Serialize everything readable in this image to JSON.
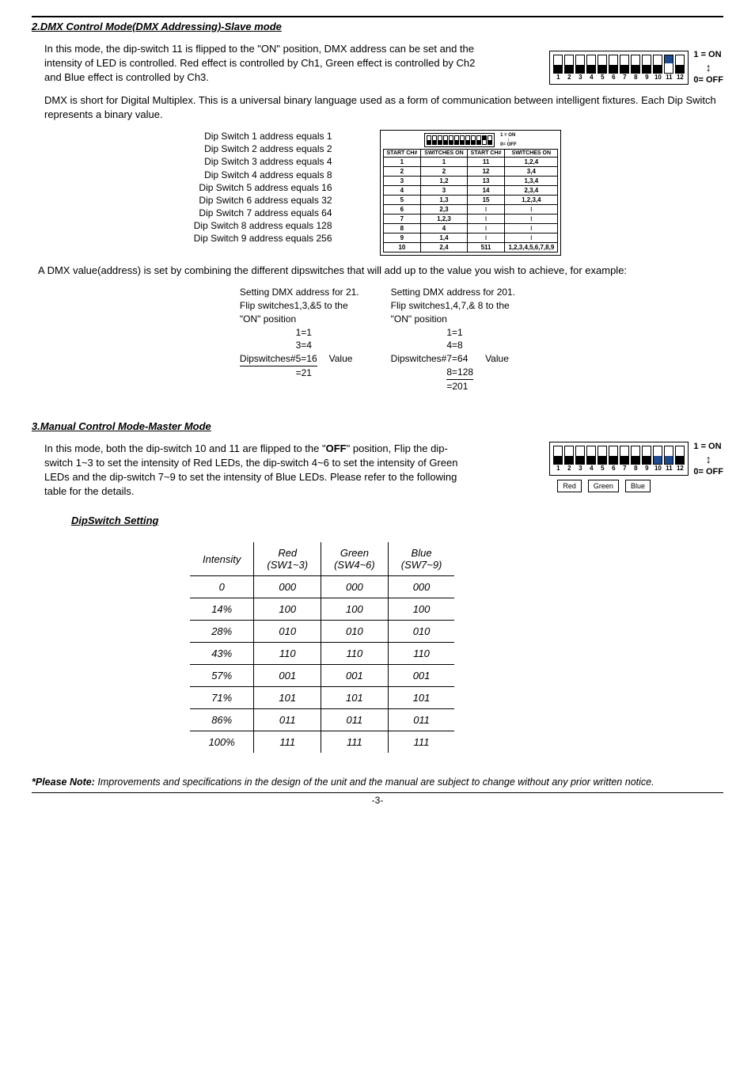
{
  "section2": {
    "title": "2.DMX Control Mode(DMX Addressing)-Slave mode",
    "para1": "In this mode, the dip-switch 11 is flipped to the \"ON\" position, DMX address can be set and the intensity of LED is controlled. Red effect is controlled by Ch1, Green effect is controlled by Ch2 and Blue effect is controlled by Ch3.",
    "dipNumbers": [
      "1",
      "2",
      "3",
      "4",
      "5",
      "6",
      "7",
      "8",
      "9",
      "10",
      "11",
      "12"
    ],
    "onLabel": "1 = ON",
    "offLabel": "0= OFF",
    "para2": "DMX is short for Digital Multiplex. This is a universal binary language used as a form of communication between intelligent fixtures. Each Dip Switch represents a binary value.",
    "addrList": [
      "Dip Switch 1 address equals 1",
      "Dip Switch 2 address equals 2",
      "Dip Switch 3 address equals 4",
      "Dip Switch 4 address equals 8",
      "Dip Switch 5 address equals 16",
      "Dip Switch 6 address equals 32",
      "Dip Switch 7 address equals 64",
      "Dip Switch 8 address equals 128",
      "Dip Switch 9 address equals 256"
    ],
    "smallTable": {
      "miniOn": "1 = ON",
      "miniOff": "0= OFF",
      "h1": "START CH#",
      "h2": "SWITCHES ON",
      "h3": "START CH#",
      "h4": "SWITCHES ON",
      "rows": [
        [
          "1",
          "1",
          "11",
          "1,2,4"
        ],
        [
          "2",
          "2",
          "12",
          "3,4"
        ],
        [
          "3",
          "1,2",
          "13",
          "1,3,4"
        ],
        [
          "4",
          "3",
          "14",
          "2,3,4"
        ],
        [
          "5",
          "1,3",
          "15",
          "1,2,3,4"
        ],
        [
          "6",
          "2,3",
          "⁝",
          "⁝"
        ],
        [
          "7",
          "1,2,3",
          "⁝",
          "⁝"
        ],
        [
          "8",
          "4",
          "⁝",
          "⁝"
        ],
        [
          "9",
          "1,4",
          "⁝",
          "⁝"
        ],
        [
          "10",
          "2,4",
          "511",
          "1,2,3,4,5,6,7,8,9"
        ]
      ]
    },
    "para3": "A DMX value(address) is set by combining the different dipswitches that will add up to the value you wish to achieve, for example:",
    "ex1": {
      "l1": "Setting DMX  address for 21.",
      "l2": "Flip switches1,3,&5 to the",
      "l3": "\"ON\" position",
      "r1": "1=1",
      "r2": "3=4",
      "dplabel": "Dipswitches#",
      "r3": "5=16",
      "val": "Value",
      "sum": "=21"
    },
    "ex2": {
      "l1": "Setting DMX  address for 201.",
      "l2": "Flip switches1,4,7,& 8 to the",
      "l3": "\"ON\" position",
      "r1": "1=1",
      "r2": "4=8",
      "dplabel": "Dipswitches#",
      "r3": "7=64",
      "val": "Value",
      "r4": "8=128",
      "sum": "=201"
    }
  },
  "section3": {
    "title": "3.Manual Control Mode-Master Mode",
    "para1": "In this mode, both the dip-switch 10 and 11 are flipped to the \"OFF\" position, Flip the dip-switch 1~3 to set the intensity of Red LEDs, the dip-switch 4~6 to set the intensity of Green LEDs and the dip-switch 7~9 to set the intensity of Blue LEDs. Please refer to the following table for the details.",
    "red": "Red",
    "green": "Green",
    "blue": "Blue",
    "subTitle": "DipSwitch Setting",
    "tableHeaders": [
      "Intensity",
      "Red (SW1~3)",
      "Green (SW4~6)",
      "Blue (SW7~9)"
    ],
    "h1a": "Intensity",
    "h2a": "Red",
    "h2b": "(SW1~3)",
    "h3a": "Green",
    "h3b": "(SW4~6)",
    "h4a": "Blue",
    "h4b": "(SW7~9)",
    "rows": [
      [
        "0",
        "000",
        "000",
        "000"
      ],
      [
        "14%",
        "100",
        "100",
        "100"
      ],
      [
        "28%",
        "010",
        "010",
        "010"
      ],
      [
        "43%",
        "110",
        "110",
        "110"
      ],
      [
        "57%",
        "001",
        "001",
        "001"
      ],
      [
        "71%",
        "101",
        "101",
        "101"
      ],
      [
        "86%",
        "011",
        "011",
        "011"
      ],
      [
        "100%",
        "111",
        "111",
        "111"
      ]
    ]
  },
  "footnote": {
    "bold": "*Please Note:",
    "text": " Improvements and specifications in the design of the unit and the manual are subject to change without any prior written notice."
  },
  "pageNum": "-3-"
}
